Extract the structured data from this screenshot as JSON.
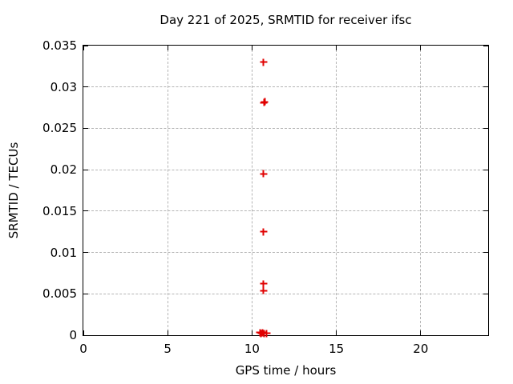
{
  "page": {
    "background_color": "#ffffff",
    "axis_color": "#000000",
    "grid_color": "#b3b3b3"
  },
  "chart_data": {
    "type": "scatter",
    "title": "Day 221 of 2025, SRMTID for receiver ifsc",
    "xlabel": "GPS time / hours",
    "ylabel": "SRMTID / TECUs",
    "xlim": [
      0,
      24
    ],
    "ylim": [
      0,
      0.035
    ],
    "grid": true,
    "legend_visible": false,
    "marker": "plus",
    "marker_color": "#e00000",
    "xticks": [
      {
        "v": 0,
        "label": "0"
      },
      {
        "v": 5,
        "label": "5"
      },
      {
        "v": 10,
        "label": "10"
      },
      {
        "v": 15,
        "label": "15"
      },
      {
        "v": 20,
        "label": "20"
      }
    ],
    "yticks": [
      {
        "v": 0,
        "label": "0"
      },
      {
        "v": 0.005,
        "label": "0.005"
      },
      {
        "v": 0.01,
        "label": "0.01"
      },
      {
        "v": 0.015,
        "label": "0.015"
      },
      {
        "v": 0.02,
        "label": "0.02"
      },
      {
        "v": 0.025,
        "label": "0.025"
      },
      {
        "v": 0.03,
        "label": "0.03"
      },
      {
        "v": 0.035,
        "label": "0.035"
      }
    ],
    "series": [
      {
        "name": "SRMTID",
        "points": [
          [
            10.69,
            0.033
          ],
          [
            10.71,
            0.0281
          ],
          [
            10.75,
            0.0282
          ],
          [
            10.69,
            0.0195
          ],
          [
            10.69,
            0.0125
          ],
          [
            10.69,
            0.0062
          ],
          [
            10.69,
            0.0054
          ],
          [
            10.47,
            0.0003
          ],
          [
            10.55,
            0.0002
          ],
          [
            10.63,
            0.0003
          ],
          [
            10.7,
            0.0002
          ],
          [
            10.86,
            0.0002
          ]
        ]
      }
    ]
  }
}
